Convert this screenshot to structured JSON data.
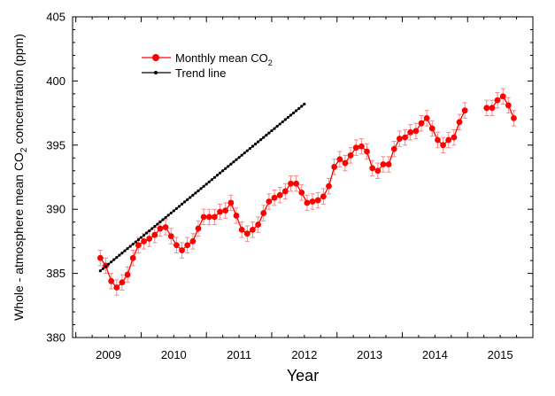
{
  "colors": {
    "monthly": "#ff0000",
    "errorbar": "#f08a8a",
    "trend": "#000000",
    "axis": "#000000"
  },
  "chart_data": {
    "type": "line",
    "xlabel": "Year",
    "ylabel_parts": [
      "Whole - atmosphere mean CO",
      "2",
      " concentration (ppm)"
    ],
    "xlim": [
      2008.45,
      2015.5
    ],
    "ylim": [
      380,
      405
    ],
    "x_ticks": [
      "2009",
      "2010",
      "2011",
      "2012",
      "2013",
      "2014",
      "2015"
    ],
    "y_ticks": [
      "380",
      "385",
      "390",
      "395",
      "400",
      "405"
    ],
    "grid": false,
    "legend_position": "top-left",
    "legend": [
      {
        "label_main": "Monthly mean CO",
        "label_sub": "2",
        "series": "monthly"
      },
      {
        "label_main": "Trend line",
        "label_sub": "",
        "series": "trend"
      }
    ],
    "series": [
      {
        "id": "monthly",
        "x": [
          2008.875,
          2008.958,
          2009.042,
          2009.125,
          2009.208,
          2009.292,
          2009.375,
          2009.458,
          2009.542,
          2009.625,
          2009.708,
          2009.792,
          2009.875,
          2009.958,
          2010.042,
          2010.125,
          2010.208,
          2010.292,
          2010.375,
          2010.458,
          2010.542,
          2010.625,
          2010.708,
          2010.792,
          2010.875,
          2010.958,
          2011.042,
          2011.125,
          2011.208,
          2011.292,
          2011.375,
          2011.458,
          2011.542,
          2011.625,
          2011.708,
          2011.792,
          2011.875,
          2011.958,
          2012.042,
          2012.125,
          2012.208,
          2012.292,
          2012.375,
          2012.458,
          2012.542,
          2012.625,
          2012.708,
          2012.792,
          2012.875,
          2012.958,
          2013.042,
          2013.125,
          2013.208,
          2013.292,
          2013.375,
          2013.458,
          2013.542,
          2013.625,
          2013.708,
          2013.792,
          2013.875,
          2013.958,
          2014.042,
          2014.125,
          2014.208,
          2014.292,
          2014.375,
          2014.458,
          2014.792,
          2014.875,
          2014.958,
          2015.042,
          2015.125,
          2015.208
        ],
        "y": [
          386.2,
          385.6,
          384.4,
          383.9,
          384.3,
          384.9,
          386.2,
          387.2,
          387.5,
          387.7,
          388.0,
          388.5,
          388.6,
          387.9,
          387.2,
          386.8,
          387.2,
          387.5,
          388.5,
          389.4,
          389.4,
          389.4,
          389.8,
          389.9,
          390.5,
          389.5,
          388.4,
          388.1,
          388.4,
          388.8,
          389.7,
          390.6,
          390.9,
          391.1,
          391.4,
          392.0,
          392.0,
          391.3,
          390.5,
          390.6,
          390.7,
          391.0,
          391.8,
          393.3,
          393.9,
          393.6,
          394.2,
          394.8,
          394.9,
          394.5,
          393.2,
          393.0,
          393.5,
          393.5,
          394.7,
          395.5,
          395.6,
          396.0,
          396.1,
          396.7,
          397.1,
          396.3,
          395.4,
          395.0,
          395.4,
          395.6,
          396.8,
          397.7,
          397.9,
          397.9,
          398.5,
          398.8,
          398.1,
          397.1
        ],
        "error": 0.6
      },
      {
        "id": "trend",
        "start_x": 2008.875,
        "step_x": 0.041667,
        "start_y": 385.2,
        "end_y": 398.2,
        "count": 76
      }
    ]
  }
}
